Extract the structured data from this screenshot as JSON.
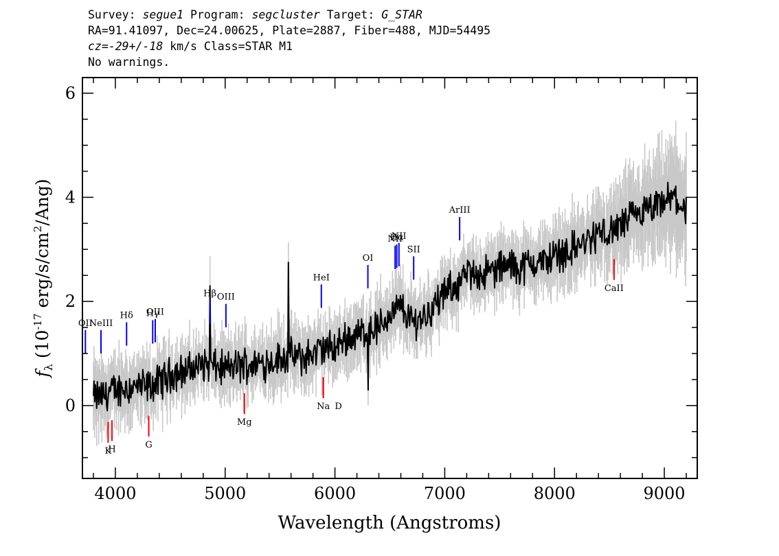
{
  "header": {
    "survey_label": "Survey:",
    "survey": "segue1",
    "program_label": "Program:",
    "program": "segcluster",
    "target_label": "Target:",
    "target": "G_STAR",
    "line2": "RA=91.41097, Dec=24.00625, Plate=2887, Fiber=488, MJD=54495",
    "cz_label": "cz=",
    "cz_value": "-29+/-18",
    "cz_rest": " km/s Class=STAR M1",
    "line4": "No warnings."
  },
  "chart_data": {
    "type": "line",
    "xlabel": "Wavelength (Angstroms)",
    "ylabel": "f_λ (10^-17 erg/s/cm^2/Ang)",
    "xlim": [
      3700,
      9300
    ],
    "ylim": [
      -1.4,
      6.3
    ],
    "x_ticks": [
      4000,
      5000,
      6000,
      7000,
      8000,
      9000
    ],
    "x_tick_labels": [
      "4000",
      "5000",
      "6000",
      "7000",
      "8000",
      "9000"
    ],
    "y_ticks": [
      0,
      2,
      4,
      6
    ],
    "y_tick_labels": [
      "0",
      "2",
      "4",
      "6"
    ],
    "series": [
      {
        "role": "flux",
        "color": "#000000",
        "x": [
          3800,
          3900,
          4000,
          4100,
          4200,
          4300,
          4400,
          4500,
          4600,
          4700,
          4800,
          4900,
          5000,
          5100,
          5200,
          5300,
          5400,
          5500,
          5600,
          5700,
          5800,
          5900,
          6000,
          6100,
          6200,
          6300,
          6400,
          6500,
          6600,
          6700,
          6800,
          6900,
          7000,
          7100,
          7200,
          7300,
          7400,
          7500,
          7600,
          7700,
          7800,
          7900,
          8000,
          8100,
          8200,
          8300,
          8400,
          8500,
          8600,
          8700,
          8800,
          8900,
          9000,
          9100,
          9200
        ],
        "y": [
          0.15,
          0.2,
          0.3,
          0.35,
          0.35,
          0.35,
          0.45,
          0.6,
          0.65,
          0.7,
          0.8,
          0.75,
          0.7,
          0.75,
          0.8,
          0.8,
          0.85,
          0.9,
          0.95,
          0.9,
          1.0,
          1.1,
          1.1,
          1.3,
          1.35,
          1.45,
          1.5,
          1.75,
          1.9,
          1.6,
          1.7,
          1.9,
          2.15,
          2.3,
          2.5,
          2.55,
          2.55,
          2.65,
          2.7,
          2.65,
          2.75,
          2.75,
          2.9,
          2.95,
          3.05,
          3.15,
          3.3,
          3.3,
          3.45,
          3.6,
          3.7,
          3.75,
          3.9,
          4.0,
          3.7
        ]
      },
      {
        "role": "error-band",
        "color": "#c8c8c8",
        "x": [
          3800,
          4000,
          4500,
          5000,
          5500,
          6000,
          6500,
          7000,
          7500,
          8000,
          8500,
          9000,
          9200
        ],
        "half_width": [
          0.6,
          0.5,
          0.45,
          0.45,
          0.5,
          0.45,
          0.5,
          0.45,
          0.45,
          0.5,
          0.6,
          0.9,
          0.9
        ]
      }
    ],
    "spikes": [
      {
        "x": 4861,
        "y": 2.3
      },
      {
        "x": 5577,
        "y": 2.75
      },
      {
        "x": 6300,
        "y": 0.3
      }
    ],
    "emission_lines": [
      {
        "label": "OII",
        "x": 3727,
        "color": "#0000ff"
      },
      {
        "label": "NeIII",
        "x": 3869,
        "color": "#0000ff"
      },
      {
        "label": "Hδ",
        "x": 4102,
        "color": "#0000ff"
      },
      {
        "label": "Hγ",
        "x": 4340,
        "color": "#0000ff"
      },
      {
        "label": "OIII",
        "x": 4363,
        "color": "#0000ff"
      },
      {
        "label": "Hβ",
        "x": 4861,
        "color": "#0000ff"
      },
      {
        "label": "OIII",
        "x": 5007,
        "color": "#0000ff"
      },
      {
        "label": "HeI",
        "x": 5876,
        "color": "#0000ff"
      },
      {
        "label": "OI",
        "x": 6300,
        "color": "#0000ff"
      },
      {
        "label": "NII",
        "x": 6548,
        "color": "#0000ff"
      },
      {
        "label": "Hα",
        "x": 6563,
        "color": "#0000ff"
      },
      {
        "label": "NII",
        "x": 6583,
        "color": "#0000ff"
      },
      {
        "label": "SII",
        "x": 6717,
        "color": "#0000ff"
      },
      {
        "label": "ArIII",
        "x": 7136,
        "color": "#0000ff"
      }
    ],
    "absorption_lines": [
      {
        "label": "K",
        "x": 3934,
        "color": "#ff0000"
      },
      {
        "label": "H",
        "x": 3969,
        "color": "#ff0000"
      },
      {
        "label": "G",
        "x": 4304,
        "color": "#ff0000"
      },
      {
        "label": "Mg",
        "x": 5175,
        "color": "#ff0000"
      },
      {
        "label": "Na",
        "x": 5894,
        "color": "#ff0000"
      },
      {
        "label": "D",
        "x": 5894,
        "color": "#ff0000"
      },
      {
        "label": "CaII",
        "x": 8542,
        "color": "#ff0000"
      }
    ]
  }
}
